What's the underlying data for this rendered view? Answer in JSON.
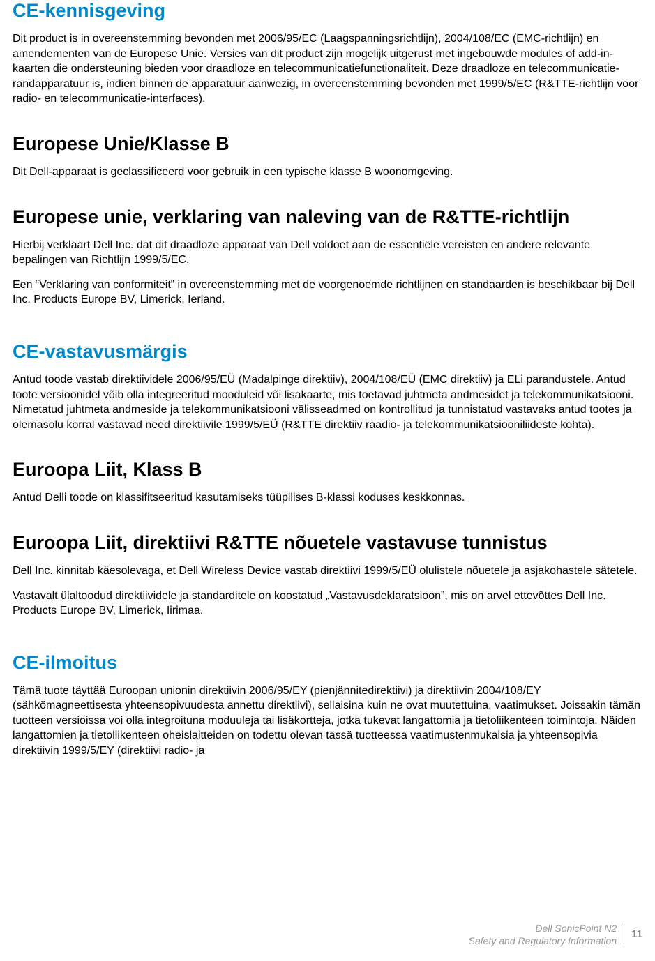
{
  "colors": {
    "heading_blue": "#0088cc",
    "heading_black": "#000000",
    "body_text": "#000000",
    "footer_text": "#999999",
    "page_number": "#888888",
    "background": "#ffffff"
  },
  "typography": {
    "h1_fontsize": 27,
    "body_fontsize": 16,
    "footer_fontsize": 14,
    "page_num_fontsize": 15,
    "font_family": "Verdana, Geneva, sans-serif"
  },
  "sections": [
    {
      "heading": "CE-kennisgeving",
      "heading_color": "blue",
      "paragraphs": [
        "Dit product is in overeenstemming bevonden met 2006/95/EC (Laagspanningsrichtlijn), 2004/108/EC (EMC-richtlijn) en amendementen van de Europese Unie. Versies van dit product zijn mogelijk uitgerust met ingebouwde modules of add-in-kaarten die ondersteuning bieden voor draadloze en telecommunicatiefunctionaliteit. Deze draadloze en telecommunicatie-randapparatuur is, indien binnen de apparatuur aanwezig, in overeenstemming bevonden met 1999/5/EC (R&TTE-richtlijn voor radio- en telecommunicatie-interfaces)."
      ]
    },
    {
      "heading": "Europese Unie/Klasse B",
      "heading_color": "black",
      "paragraphs": [
        "Dit Dell-apparaat is geclassificeerd voor gebruik in een typische klasse B woonomgeving."
      ]
    },
    {
      "heading": "Europese unie, verklaring van naleving van de R&TTE-richtlijn",
      "heading_color": "black",
      "paragraphs": [
        "Hierbij verklaart Dell Inc. dat dit draadloze apparaat van Dell voldoet aan de essentiële vereisten en andere relevante bepalingen van Richtlijn 1999/5/EC.",
        "Een “Verklaring van conformiteit” in overeenstemming met de voorgenoemde richtlijnen en standaarden is beschikbaar bij Dell Inc. Products Europe BV, Limerick, Ierland."
      ]
    },
    {
      "heading": "CE-vastavusmärgis",
      "heading_color": "blue",
      "gap": true,
      "paragraphs": [
        "Antud toode vastab direktiividele 2006/95/EÜ (Madalpinge direktiiv), 2004/108/EÜ (EMC direktiiv) ja ELi parandustele. Antud toote versioonidel võib olla integreeritud mooduleid või lisakaarte, mis toetavad juhtmeta andmesidet ja telekommunikatsiooni. Nimetatud juhtmeta andmeside ja telekommunikatsiooni välisseadmed on kontrollitud ja tunnistatud vastavaks antud tootes ja olemasolu korral vastavad need direktiivile 1999/5/EÜ (R&TTE direktiiv raadio- ja telekommunikatsiooniliideste kohta)."
      ]
    },
    {
      "heading": "Euroopa Liit, Klass B",
      "heading_color": "black",
      "paragraphs": [
        "Antud Delli toode on klassifitseeritud kasutamiseks tüüpilises B-klassi koduses keskkonnas."
      ]
    },
    {
      "heading": "Euroopa Liit, direktiivi R&TTE nõuetele vastavuse tunnistus",
      "heading_color": "black",
      "paragraphs": [
        "Dell Inc. kinnitab käesolevaga, et Dell Wireless Device vastab direktiivi 1999/5/EÜ olulistele nõuetele ja asjakohastele sätetele.",
        "Vastavalt ülaltoodud direktiividele ja standarditele on koostatud „Vastavusdeklaratsioon”, mis on arvel ettevõttes Dell Inc. Products Europe BV, Limerick, Iirimaa."
      ]
    },
    {
      "heading": "CE-ilmoitus",
      "heading_color": "blue",
      "gap": true,
      "paragraphs": [
        "Tämä tuote täyttää Euroopan unionin direktiivin 2006/95/EY (pienjännitedirektiivi) ja direktiivin 2004/108/EY (sähkömagneettisesta yhteensopivuudesta annettu direktiivi), sellaisina kuin ne ovat muutettuina, vaatimukset. Joissakin tämän tuotteen versioissa voi olla integroituna moduuleja tai lisäkortteja, jotka tukevat langattomia ja tietoliikenteen toimintoja. Näiden langattomien ja tietoliikenteen oheislaitteiden on todettu olevan tässä tuotteessa vaatimustenmukaisia ja yhteensopivia direktiivin 1999/5/EY (direktiivi radio- ja"
      ]
    }
  ],
  "footer": {
    "line1": "Dell SonicPoint N2",
    "line2": "Safety and Regulatory Information",
    "page_number": "11"
  }
}
